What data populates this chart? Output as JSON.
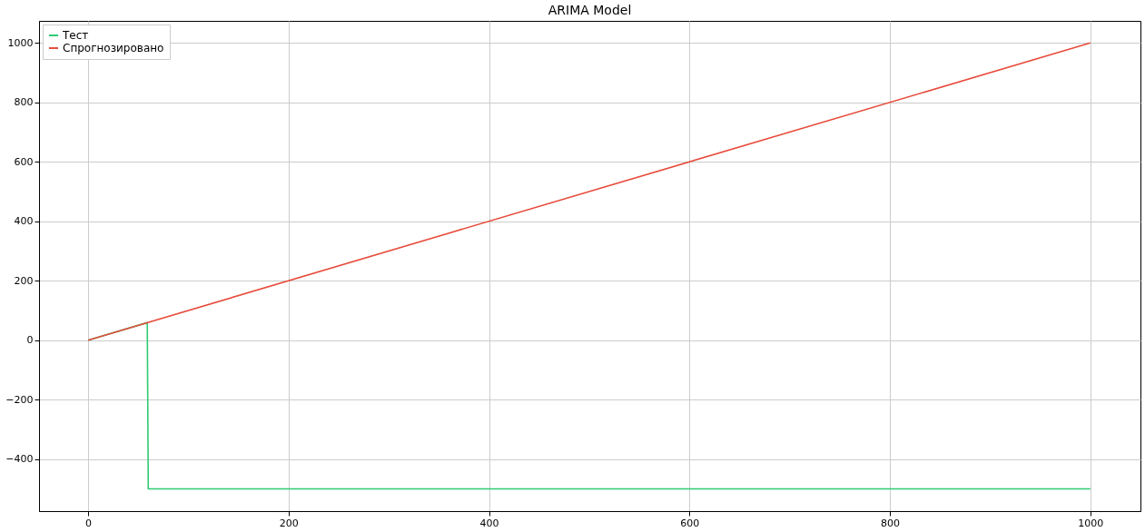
{
  "chart_data": {
    "type": "line",
    "title": "ARIMA Model",
    "series": [
      {
        "name": "Тест",
        "color": "#2ecc71",
        "x": [
          0,
          59,
          60,
          1000
        ],
        "values": [
          0,
          59,
          -500,
          -500
        ]
      },
      {
        "name": "Спрогнозировано",
        "color": "#e74c3c",
        "x": [
          0,
          1000
        ],
        "values": [
          0,
          1000
        ]
      }
    ],
    "xlim": [
      -49,
      1050
    ],
    "xticks": [
      0,
      200,
      400,
      600,
      800,
      1000
    ],
    "ylim": [
      -575,
      1074
    ],
    "yticks": [
      -400,
      -200,
      0,
      200,
      400,
      600,
      800,
      1000
    ],
    "grid": true,
    "legend": "top left",
    "marker": "none",
    "line_style": "solid"
  }
}
